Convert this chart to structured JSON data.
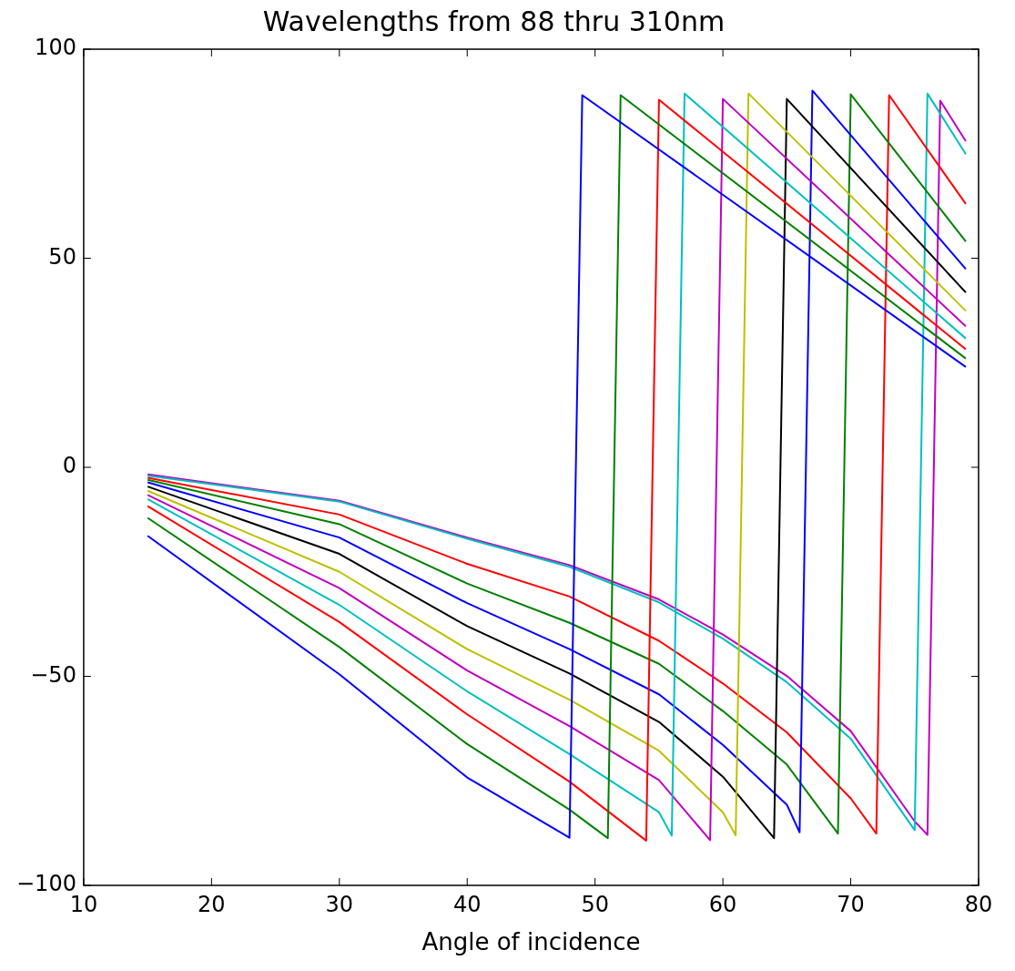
{
  "chart_data": {
    "type": "line",
    "title": "Wavelengths from 88 thru 310nm",
    "xlabel": "Angle of incidence",
    "xlim": [
      10,
      80
    ],
    "xticks": [
      10,
      20,
      30,
      40,
      50,
      60,
      70,
      80
    ],
    "ylim": [
      -100,
      100
    ],
    "yticks": [
      -100,
      -50,
      0,
      50,
      100
    ],
    "series": [
      {
        "color": "#0000ff",
        "x": [
          15,
          30,
          40,
          48,
          49,
          79
        ],
        "values": [
          -16.4,
          -49.5,
          -74.2,
          -88.6,
          89,
          24
        ]
      },
      {
        "color": "#008000",
        "x": [
          15,
          30,
          40,
          48,
          51,
          52,
          79
        ],
        "values": [
          -12.1,
          -43,
          -66.2,
          -81.9,
          -88.7,
          89,
          26
        ]
      },
      {
        "color": "#ff0000",
        "x": [
          15,
          30,
          40,
          48,
          54,
          55,
          79
        ],
        "values": [
          -9.3,
          -37,
          -59.1,
          -75.2,
          -89.3,
          87.9,
          28.2
        ]
      },
      {
        "color": "#00bfbf",
        "x": [
          15,
          30,
          40,
          48,
          55,
          56,
          57,
          79
        ],
        "values": [
          -7.6,
          -32.9,
          -53.6,
          -68.6,
          -82.5,
          -88.1,
          89.4,
          30.8
        ]
      },
      {
        "color": "#bf00bf",
        "x": [
          15,
          30,
          40,
          48,
          55,
          59,
          60,
          79
        ],
        "values": [
          -6.6,
          -28.9,
          -48.6,
          -61.9,
          -74.8,
          -89.2,
          88.1,
          33.7
        ]
      },
      {
        "color": "#bfbf00",
        "x": [
          15,
          30,
          40,
          48,
          55,
          60,
          61,
          62,
          79
        ],
        "values": [
          -5.6,
          -25,
          -43.5,
          -55.6,
          -67.8,
          -82.5,
          -88,
          89.4,
          37.4
        ]
      },
      {
        "color": "#000000",
        "x": [
          15,
          30,
          40,
          48,
          55,
          60,
          64,
          65,
          79
        ],
        "values": [
          -4.6,
          -20.7,
          -38,
          -49.3,
          -60.9,
          -74,
          -88.7,
          88.1,
          41.8
        ]
      },
      {
        "color": "#0000ff",
        "x": [
          15,
          30,
          40,
          48,
          55,
          60,
          65,
          66,
          67,
          79
        ],
        "values": [
          -3.6,
          -16.8,
          -32.5,
          -43.5,
          -54.3,
          -66.4,
          -80.7,
          -87.3,
          90.1,
          47.4
        ]
      },
      {
        "color": "#008000",
        "x": [
          15,
          30,
          40,
          48,
          55,
          60,
          65,
          69,
          70,
          79
        ],
        "values": [
          -3,
          -13.6,
          -27.8,
          -37.2,
          -47,
          -58.3,
          -71.1,
          -87.6,
          89.2,
          54
        ]
      },
      {
        "color": "#ff0000",
        "x": [
          15,
          30,
          40,
          48,
          55,
          60,
          65,
          70,
          72,
          73,
          79
        ],
        "values": [
          -2.5,
          -11.3,
          -23.1,
          -30.9,
          -41.5,
          -51.7,
          -63.4,
          -79.2,
          -87.6,
          89,
          63
        ]
      },
      {
        "color": "#00bfbf",
        "x": [
          15,
          30,
          40,
          48,
          55,
          60,
          65,
          70,
          75,
          76,
          79
        ],
        "values": [
          -2,
          -8.2,
          -17.1,
          -23.8,
          -32.3,
          -41,
          -51.4,
          -64.9,
          -86.8,
          89.4,
          74.9
        ]
      },
      {
        "color": "#bf00bf",
        "x": [
          15,
          30,
          40,
          48,
          55,
          60,
          65,
          70,
          75,
          76,
          77,
          79
        ],
        "values": [
          -1.7,
          -8,
          -16.8,
          -23.4,
          -31.6,
          -40,
          -49.9,
          -63.1,
          -84.7,
          -87.9,
          87.7,
          78
        ]
      }
    ]
  }
}
